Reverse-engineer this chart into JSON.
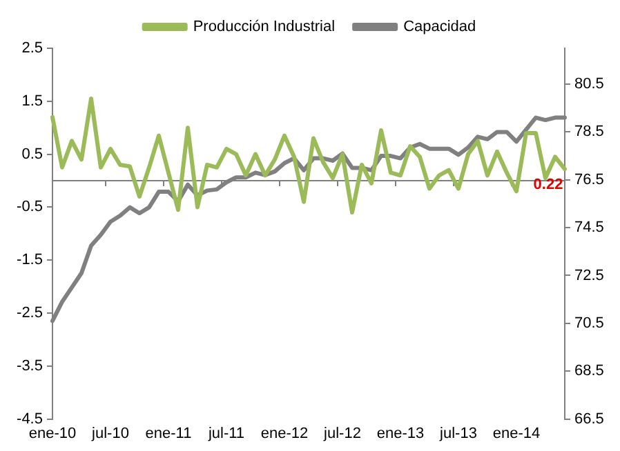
{
  "chart_data": {
    "type": "line",
    "categories": [
      "ene-10",
      null,
      null,
      null,
      null,
      null,
      "jul-10",
      null,
      null,
      null,
      null,
      null,
      "ene-11",
      null,
      null,
      null,
      null,
      null,
      "jul-11",
      null,
      null,
      null,
      null,
      null,
      "ene-12",
      null,
      null,
      null,
      null,
      null,
      "jul-12",
      null,
      null,
      null,
      null,
      null,
      "ene-13",
      null,
      null,
      null,
      null,
      null,
      "jul-13",
      null,
      null,
      null,
      null,
      null,
      "ene-14",
      null,
      null,
      null,
      null,
      null
    ],
    "series": [
      {
        "name": "Producción Industrial",
        "color": "#9bbb59",
        "values": [
          1.2,
          0.25,
          0.75,
          0.4,
          1.55,
          0.25,
          0.6,
          0.3,
          0.27,
          -0.3,
          0.25,
          0.85,
          0.15,
          -0.55,
          1.0,
          -0.5,
          0.3,
          0.25,
          0.6,
          0.5,
          0.1,
          0.5,
          0.1,
          0.4,
          0.85,
          0.45,
          -0.4,
          0.8,
          0.35,
          0.05,
          0.5,
          -0.6,
          0.3,
          -0.05,
          0.95,
          0.15,
          0.1,
          0.65,
          0.45,
          -0.15,
          0.1,
          0.2,
          -0.15,
          0.5,
          0.75,
          0.1,
          0.55,
          0.15,
          -0.2,
          0.9,
          0.9,
          0.05,
          0.45,
          0.22
        ],
        "value_labels": [
          null,
          null,
          null,
          null,
          null,
          null,
          null,
          null,
          null,
          null,
          null,
          null,
          null,
          null,
          null,
          null,
          null,
          null,
          null,
          null,
          null,
          null,
          null,
          null,
          null,
          null,
          null,
          null,
          null,
          null,
          null,
          null,
          null,
          null,
          null,
          null,
          null,
          null,
          null,
          null,
          null,
          null,
          null,
          null,
          null,
          null,
          null,
          null,
          null,
          null,
          null,
          null,
          null,
          "0.22"
        ]
      },
      {
        "name": "Capacidad",
        "color": "#808080",
        "axis": "y2",
        "values": [
          70.6,
          71.4,
          72.0,
          72.6,
          73.75,
          74.2,
          74.75,
          75.0,
          75.35,
          75.1,
          75.35,
          76.0,
          76.0,
          75.6,
          76.3,
          75.85,
          76.05,
          76.1,
          76.4,
          76.6,
          76.6,
          76.8,
          76.7,
          76.85,
          77.2,
          77.4,
          76.9,
          77.4,
          77.4,
          77.3,
          77.6,
          77.0,
          77.0,
          76.9,
          77.5,
          77.5,
          77.4,
          77.85,
          78.0,
          77.8,
          77.8,
          77.8,
          77.55,
          77.85,
          78.3,
          78.2,
          78.5,
          78.5,
          78.1,
          78.6,
          79.1,
          79.0,
          79.1,
          79.1
        ]
      }
    ],
    "ylim": [
      -4.5,
      2.5
    ],
    "yticks": [
      -4.5,
      -3.5,
      -2.5,
      -1.5,
      -0.5,
      0.5,
      1.5,
      2.5
    ],
    "y2lim": [
      66.5,
      82
    ],
    "y2ticks": [
      66.5,
      68.5,
      70.5,
      72.5,
      74.5,
      76.5,
      78.5,
      80.5
    ],
    "ref_lines": [
      {
        "axis": "y",
        "value": 0,
        "color": "#808080"
      }
    ],
    "legend": "top",
    "grid": false,
    "marker": "none",
    "line_style": "solid"
  }
}
